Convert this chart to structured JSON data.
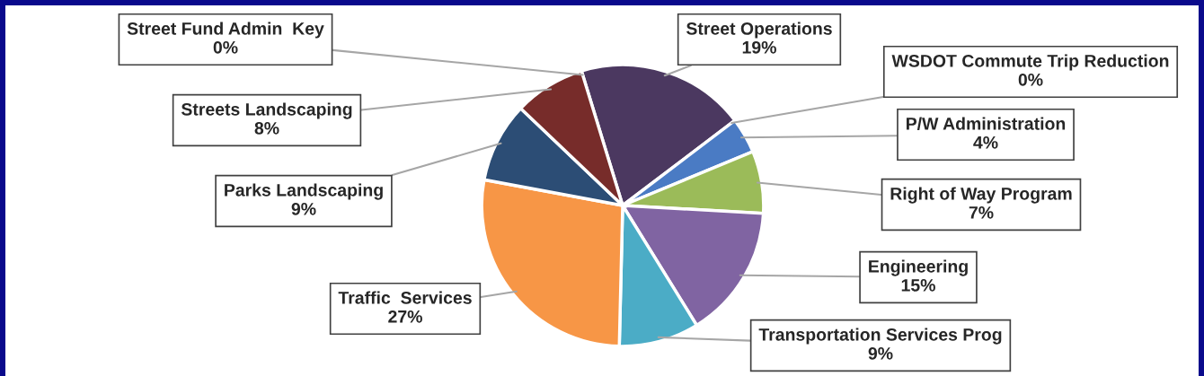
{
  "chart_data": {
    "type": "pie",
    "categories": [
      "Street Operations",
      "WSDOT Commute Trip Reduction",
      "P/W Administration",
      "Right of Way Program",
      "Engineering",
      "Transportation Services Prog",
      "Traffic  Services",
      "Parks Landscaping",
      "Streets Landscaping",
      "Street Fund Admin  Key"
    ],
    "values": [
      19,
      0,
      4,
      7,
      15,
      9,
      27,
      9,
      8,
      0
    ],
    "value_labels": [
      "19%",
      "0%",
      "4%",
      "7%",
      "15%",
      "9%",
      "27%",
      "9%",
      "8%",
      "0%"
    ],
    "colors": [
      "#4b3860",
      "#c0504d",
      "#4a7bc4",
      "#9bbb59",
      "#8064a2",
      "#4bacc6",
      "#f79646",
      "#2c4d75",
      "#772c2a",
      "#7f7f7f"
    ],
    "legend": false
  }
}
